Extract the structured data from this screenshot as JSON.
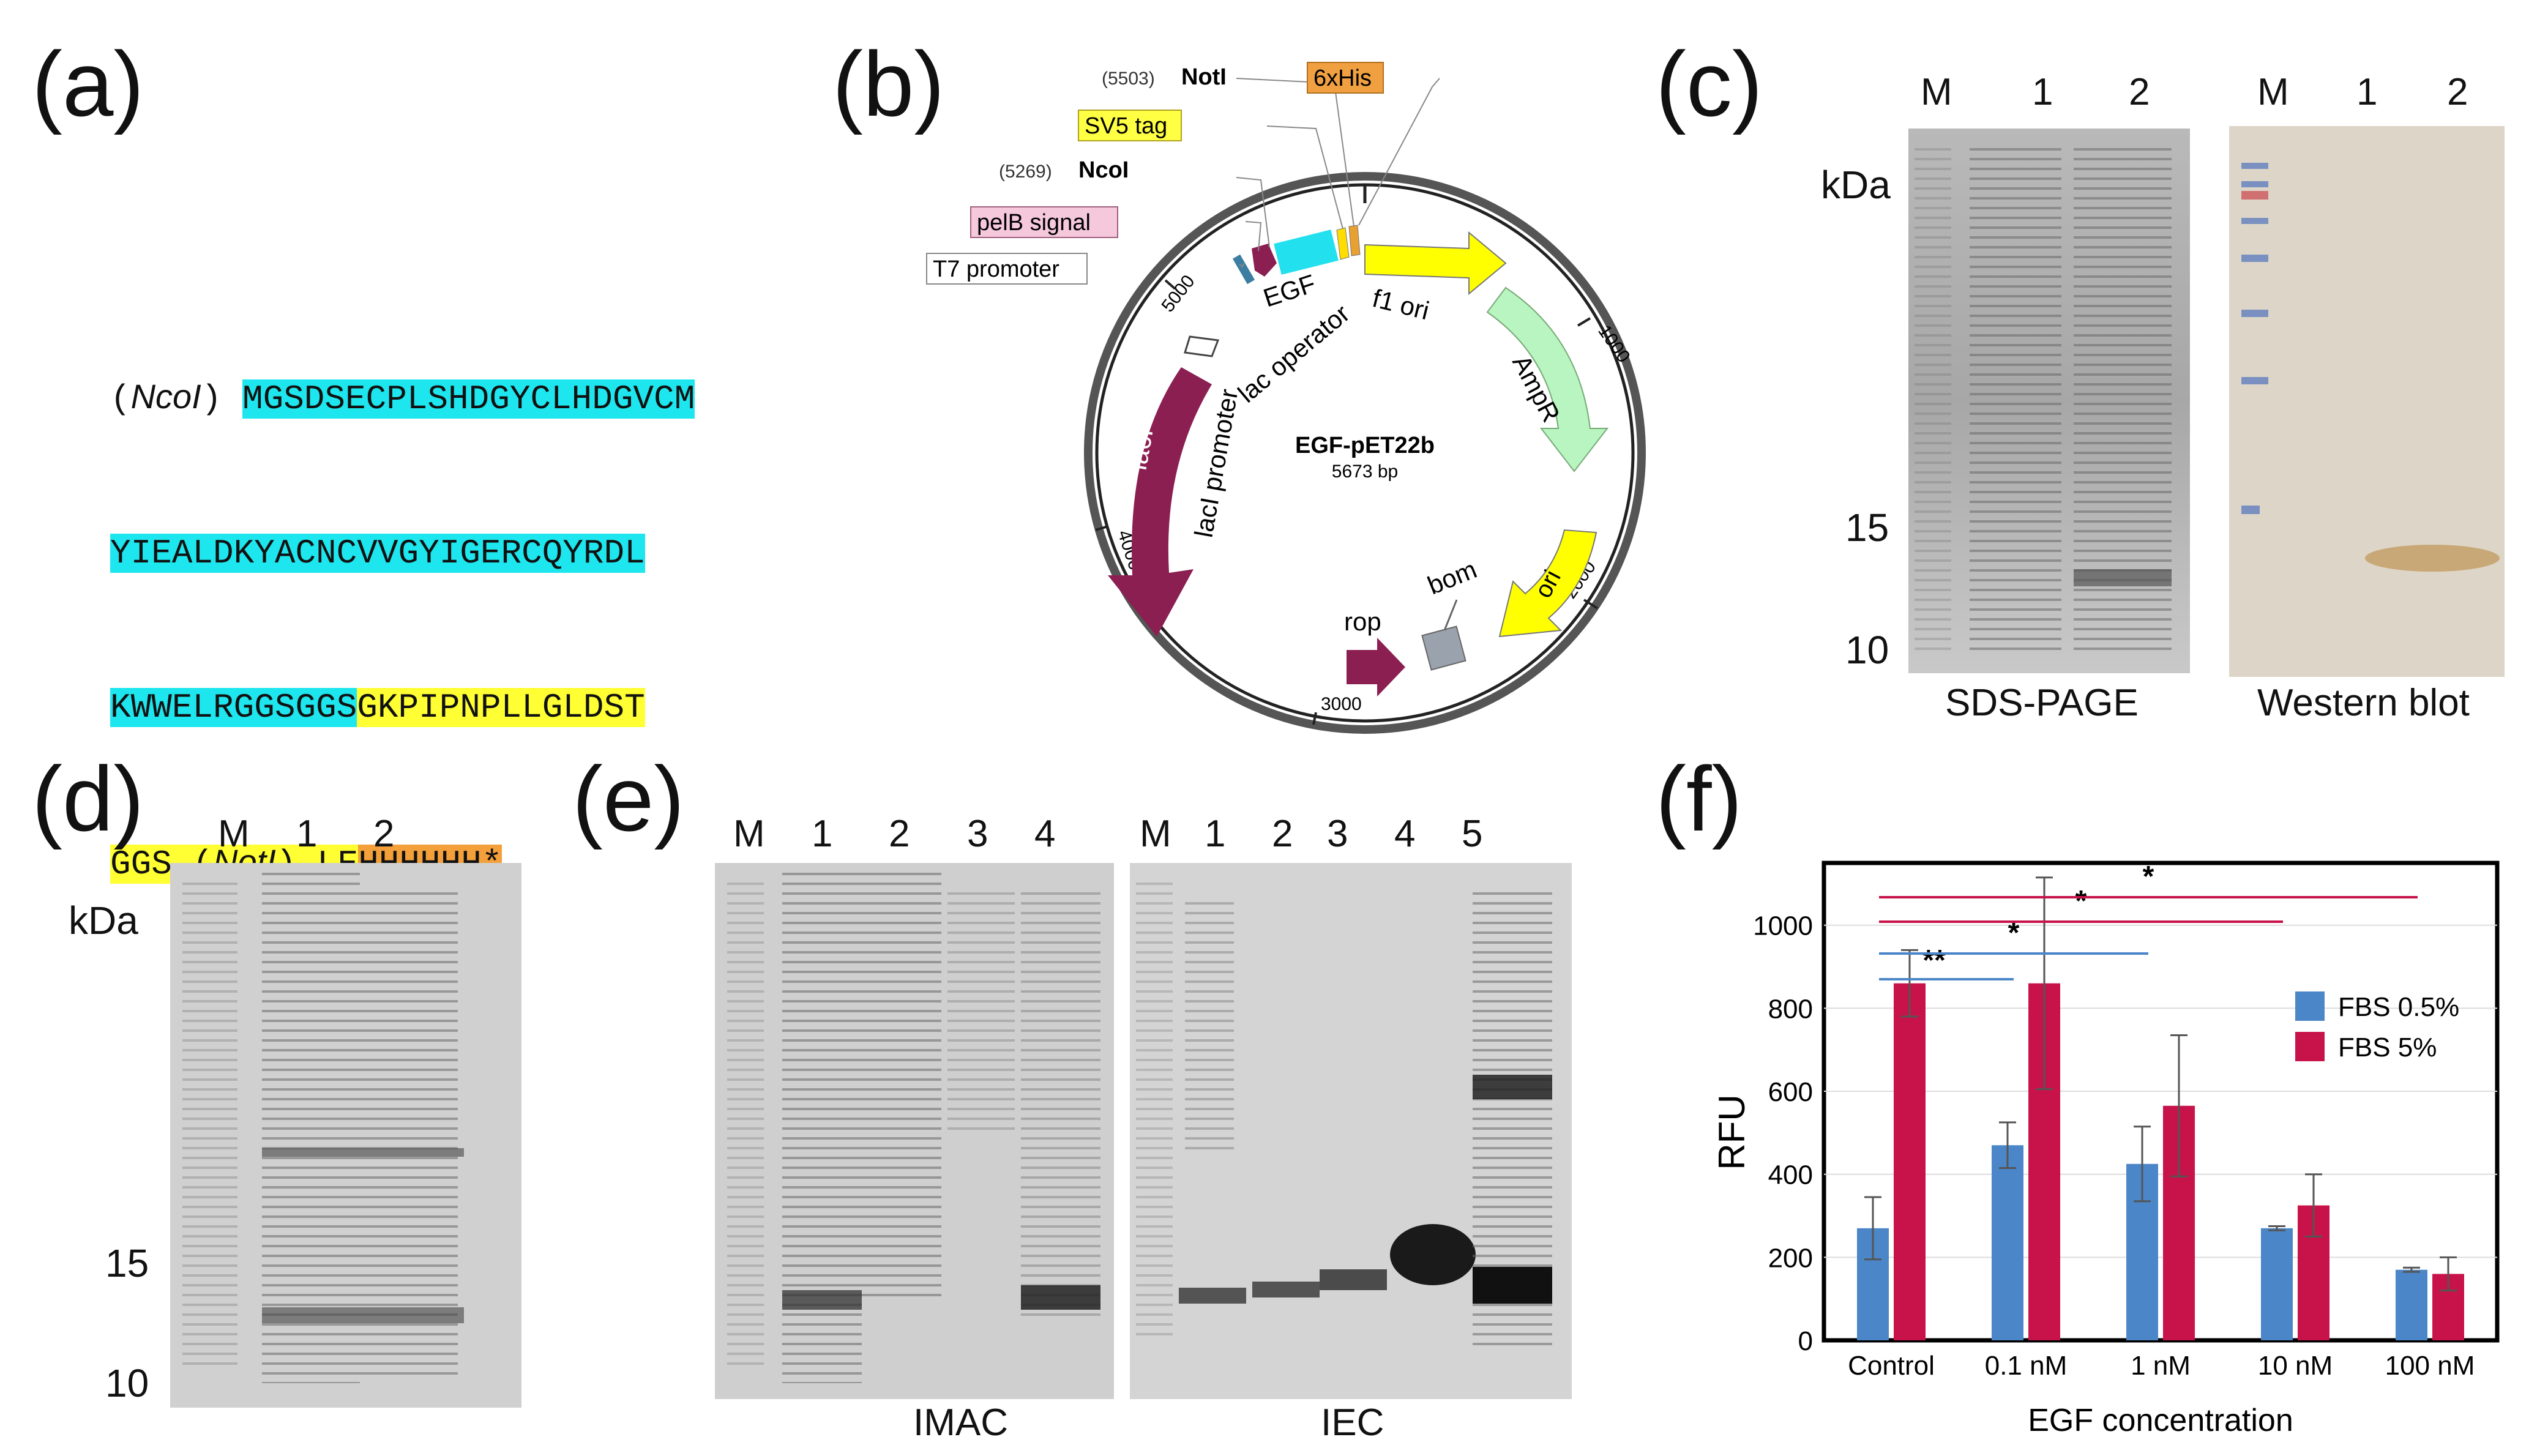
{
  "panels": {
    "a": "(a)",
    "b": "(b)",
    "c": "(c)",
    "d": "(d)",
    "e": "(e)",
    "f": "(f)"
  },
  "seq": {
    "ncoi_label": "NcoI",
    "paren_open": "(",
    "paren_close": ")",
    "line1_cyan": "MGSDSECPLSHDGYCLHDGVCM",
    "line2_cyan": "YIEALDKYACNCVVGYIGERCQYRDL",
    "line3_cyan": "KWWELRGGSGGS",
    "line3_yellow": "GKPIPNPLLGLDST",
    "line4_yellow_a": "GGS",
    "noti_label": "NotI",
    "line4_yellow_b": "LE",
    "line4_orange": "HHHHHH*"
  },
  "plasmid": {
    "name": "EGF-pET22b",
    "size": "5673 bp",
    "notI_pos": "(5503)",
    "notI": "NotI",
    "ncoI_pos": "(5269)",
    "ncoI": "NcoI",
    "his_tag": "6xHis",
    "sv5_tag": "SV5 tag",
    "pelb": "pelB signal",
    "t7": "T7 promoter",
    "egf": "EGF",
    "lac_operator": "lac operator",
    "laci_promoter": "lacI promoter",
    "laci": "lacI",
    "f1_ori": "f1 ori",
    "ampr": "AmpR",
    "ori": "ori",
    "bom": "bom",
    "rop": "rop",
    "ticks": [
      "1000",
      "2000",
      "3000",
      "4000",
      "5000"
    ],
    "colors": {
      "yellow": "#ffff00",
      "green": "#b8f5c0",
      "maroon": "#8b1f52",
      "gray": "#9aa3ad",
      "cyan": "#22e0ee",
      "orange": "#e8a030"
    }
  },
  "gel_c": {
    "lanes_sds": [
      "M",
      "1",
      "2"
    ],
    "lanes_wb": [
      "M",
      "1",
      "2"
    ],
    "kda": "kDa",
    "marker_15": "15",
    "marker_10": "10",
    "sds_caption": "SDS-PAGE",
    "wb_caption": "Western blot"
  },
  "gel_d": {
    "lanes": [
      "M",
      "1",
      "2"
    ],
    "kda": "kDa",
    "marker_15": "15",
    "marker_10": "10"
  },
  "gel_e": {
    "imac_lanes": [
      "M",
      "1",
      "2",
      "3",
      "4"
    ],
    "iec_lanes": [
      "M",
      "1",
      "2",
      "3",
      "4",
      "5"
    ],
    "imac_caption": "IMAC",
    "iec_caption": "IEC"
  },
  "chart_data": {
    "type": "bar",
    "categories": [
      "Control",
      "0.1 nM",
      "1 nM",
      "10 nM",
      "100 nM"
    ],
    "series": [
      {
        "name": "FBS 0.5%",
        "color": "#4a86c8",
        "values": [
          270,
          470,
          425,
          270,
          170
        ],
        "errors": [
          75,
          55,
          90,
          5,
          5
        ]
      },
      {
        "name": "FBS 5%",
        "color": "#c8124a",
        "values": [
          860,
          860,
          565,
          325,
          160
        ],
        "errors": [
          80,
          255,
          170,
          75,
          40
        ]
      }
    ],
    "xlabel": "EGF concentration",
    "ylabel": "RFU",
    "ylim": [
      0,
      1000
    ],
    "yticks": [
      "0",
      "200",
      "400",
      "600",
      "800",
      "1000"
    ],
    "legend_position": "top-right",
    "significance": [
      {
        "label": "**",
        "from": "Control",
        "to": "0.1 nM",
        "color": "#4a86c8"
      },
      {
        "label": "*",
        "from": "Control",
        "to": "1 nM",
        "color": "#4a86c8"
      },
      {
        "label": "*",
        "from": "Control",
        "to": "10 nM",
        "color": "#c8124a"
      },
      {
        "label": "*",
        "from": "Control",
        "to": "100 nM",
        "color": "#c8124a"
      }
    ]
  }
}
